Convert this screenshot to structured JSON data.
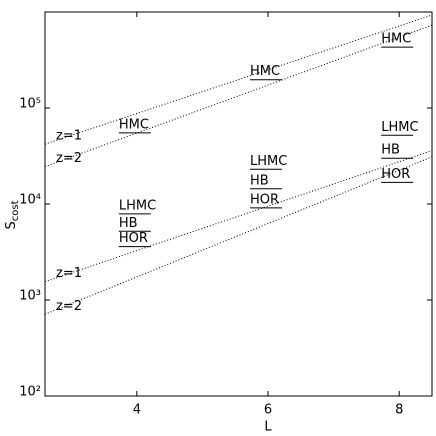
{
  "chart_data": {
    "type": "line",
    "xlabel": "L",
    "ylabel": "S",
    "ylabel_sub": "cost",
    "xlim": [
      2.6,
      8.5
    ],
    "xticks": [
      4,
      6,
      8
    ],
    "ylim": [
      100,
      1000000
    ],
    "yscale": "log",
    "yticks": [
      {
        "value": 100,
        "label": "10²"
      },
      {
        "value": 1000,
        "label": "10³"
      },
      {
        "value": 10000,
        "label": "10⁴"
      },
      {
        "value": 100000,
        "label": "10⁵"
      }
    ],
    "series": [
      {
        "name": "HMC",
        "marker": "dash",
        "color": "#000000",
        "x": [
          4,
          6,
          8
        ],
        "values": [
          55000,
          197000,
          430000
        ]
      },
      {
        "name": "LHMC",
        "marker": "dash",
        "color": "#000000",
        "x": [
          4,
          6,
          8
        ],
        "values": [
          7900,
          23000,
          52000
        ]
      },
      {
        "name": "HB",
        "marker": "dash",
        "color": "#000000",
        "x": [
          4,
          6,
          8
        ],
        "values": [
          5200,
          14400,
          30000
        ]
      },
      {
        "name": "HOR",
        "marker": "dash",
        "color": "#000000",
        "x": [
          4,
          6,
          8
        ],
        "values": [
          3600,
          9100,
          16800
        ]
      },
      {
        "name": "z=1",
        "linestyle": "dotted",
        "color": "#000000",
        "x": [
          2.6,
          8.5
        ],
        "values": [
          42000,
          930000
        ]
      },
      {
        "name": "z=2",
        "linestyle": "dotted",
        "color": "#000000",
        "x": [
          2.6,
          8.5
        ],
        "values": [
          24500,
          730000
        ]
      },
      {
        "name": "z=1",
        "linestyle": "dotted",
        "color": "#000000",
        "x": [
          2.6,
          8.5
        ],
        "values": [
          1550,
          36000
        ]
      },
      {
        "name": "z=2",
        "linestyle": "dotted",
        "color": "#000000",
        "x": [
          2.6,
          8.5
        ],
        "values": [
          710,
          31000
        ]
      }
    ]
  }
}
